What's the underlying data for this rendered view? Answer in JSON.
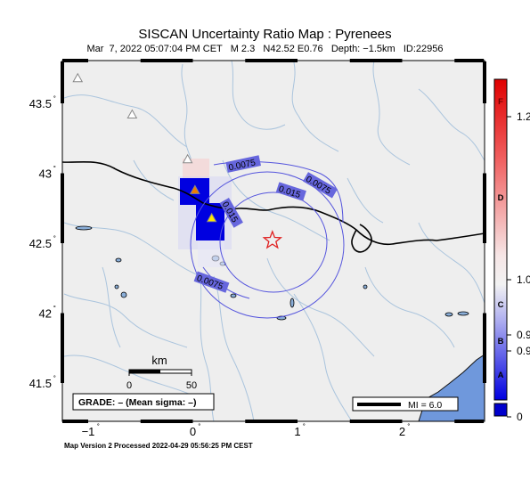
{
  "header": {
    "title": "SISCAN Uncertainty Ratio Map : Pyrenees",
    "subtitle": "Mar  7, 2022 05:07:04 PM CET   M 2.3   N42.52 E0.76   Depth: −1.5km   ID:22956"
  },
  "axes": {
    "lat_ticks": [
      {
        "value": 43.5,
        "label": "43.5"
      },
      {
        "value": 43.0,
        "label": "43"
      },
      {
        "value": 42.5,
        "label": "42.5"
      },
      {
        "value": 42.0,
        "label": "42"
      },
      {
        "value": 41.5,
        "label": "41.5"
      }
    ],
    "lon_ticks": [
      {
        "value": -1,
        "label": "−1"
      },
      {
        "value": 0,
        "label": "0"
      },
      {
        "value": 1,
        "label": "1"
      },
      {
        "value": 2,
        "label": "2"
      }
    ],
    "degree_symbol": "˚"
  },
  "contours": {
    "labels": [
      "0.0075",
      "0.0075",
      "0.015",
      "0.015",
      "0.0075"
    ]
  },
  "scale_bar": {
    "title": "km",
    "labels": [
      "0",
      "50"
    ]
  },
  "grade_box": {
    "text": "GRADE: – (Mean sigma: –)"
  },
  "mi_box": {
    "text": "MI = 6.0"
  },
  "colorbar": {
    "letters": [
      "F",
      "D",
      "C",
      "B",
      "A"
    ],
    "right_labels": [
      "1.2",
      "1.0",
      "0.9",
      "0.9",
      "0"
    ],
    "colors": {
      "top": "#e00000",
      "mid": "#f2f2f2",
      "bottom": "#0000e0",
      "nodata": "#0000cc"
    }
  },
  "epicenter": {
    "lat": 42.52,
    "lon": 0.76,
    "marker": "star-icon",
    "color": "#e02020"
  },
  "stations": [
    {
      "lat": 43.68,
      "lon": -1.1,
      "color": "#ffffff"
    },
    {
      "lat": 43.42,
      "lon": -0.58,
      "color": "#ffffff"
    },
    {
      "lat": 43.1,
      "lon": -0.05,
      "color": "#ffffff"
    },
    {
      "lat": 42.88,
      "lon": 0.02,
      "color": "#f07c00"
    },
    {
      "lat": 42.68,
      "lon": 0.18,
      "color": "#ffe800"
    }
  ],
  "footer": "Map Version 2 Processed 2022-04-29 05:56:25 PM CEST"
}
